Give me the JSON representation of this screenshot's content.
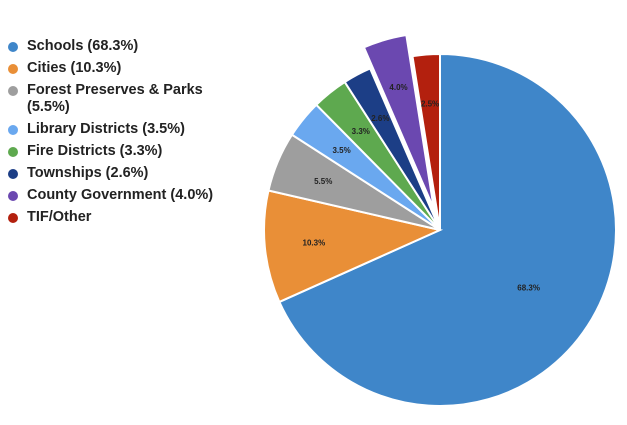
{
  "chart_data": {
    "type": "pie",
    "title": "",
    "legend_position": "left",
    "series": [
      {
        "name": "Schools (68.3%)",
        "label": "68.3%",
        "value": 68.3,
        "color": "#3f86c9"
      },
      {
        "name": "Cities (10.3%)",
        "label": "10.3%",
        "value": 10.3,
        "color": "#e98f37"
      },
      {
        "name": "Forest Preserves & Parks (5.5%)",
        "label": "5.5%",
        "value": 5.5,
        "color": "#9e9e9e"
      },
      {
        "name": "Library Districts (3.5%)",
        "label": "3.5%",
        "value": 3.5,
        "color": "#6aa8ef"
      },
      {
        "name": "Fire Districts (3.3%)",
        "label": "3.3%",
        "value": 3.3,
        "color": "#5ea94f"
      },
      {
        "name": "Townships (2.6%)",
        "label": "2.6%",
        "value": 2.6,
        "color": "#1c3e86"
      },
      {
        "name": "County Government (4.0%)",
        "label": "4.0%",
        "value": 4.0,
        "color": "#6b48b0",
        "exploded": true
      },
      {
        "name": "TIF/Other",
        "label": "2.5%",
        "value": 2.5,
        "color": "#b3200e"
      }
    ]
  }
}
